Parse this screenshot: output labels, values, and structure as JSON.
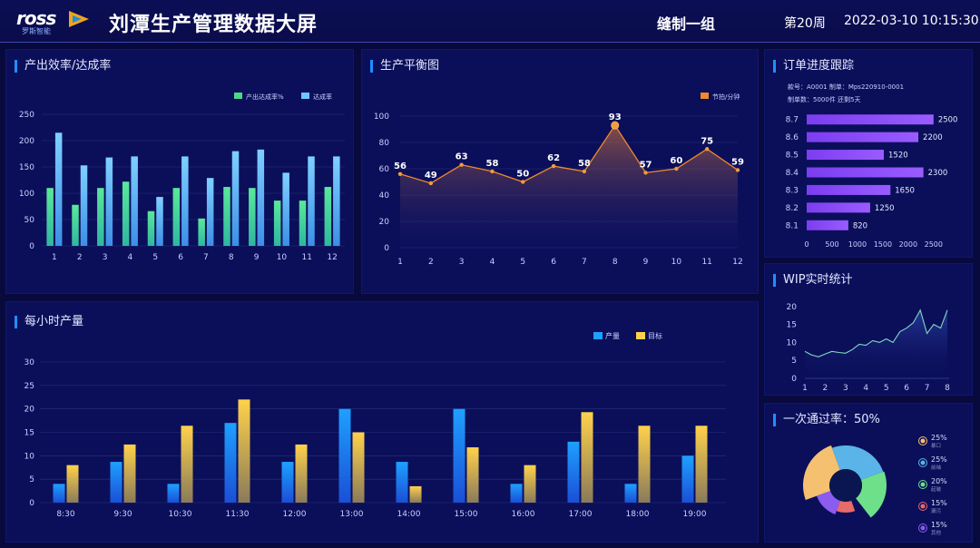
{
  "header": {
    "logo_text": "ross",
    "logo_subtext": "罗斯智能",
    "title": "刘潭生产管理数据大屏",
    "group": "缝制一组",
    "week": "第20周",
    "datetime": "2022-03-10 10:15:30"
  },
  "colors": {
    "bg": "#080a3e",
    "panel": "#0b0f5a",
    "accent": "#1f8fff",
    "green": "#4ed68a",
    "lightblue": "#6ec6ff",
    "orange": "#f08a2a",
    "yellow": "#ffd24a",
    "purple": "#7b4cf0",
    "teal": "#5fd0b0"
  },
  "panels": {
    "efficiency": {
      "title": "产出效率/达成率"
    },
    "balance": {
      "title": "生产平衡图"
    },
    "orders": {
      "title": "订单进度跟踪",
      "info1": "款号：A0001  制单：Mps220910-0001",
      "info2": "制单数：5000件  还剩5天"
    },
    "wip": {
      "title": "WIP实时统计"
    },
    "hourly": {
      "title": "每小时产量"
    },
    "passrate": {
      "title": "一次通过率：50%"
    }
  },
  "chart_data": [
    {
      "id": "efficiency",
      "type": "bar",
      "categories": [
        "1",
        "2",
        "3",
        "4",
        "5",
        "6",
        "7",
        "8",
        "9",
        "10",
        "11",
        "12"
      ],
      "series": [
        {
          "name": "产出达成率%",
          "values": [
            110,
            78,
            110,
            122,
            66,
            110,
            52,
            112,
            110,
            86,
            86,
            112
          ]
        },
        {
          "name": "达成率",
          "values": [
            215,
            153,
            168,
            170,
            93,
            170,
            129,
            180,
            183,
            139,
            170,
            170
          ]
        }
      ],
      "yticks": [
        0,
        50,
        100,
        150,
        200,
        250
      ],
      "ylim": [
        0,
        250
      ]
    },
    {
      "id": "balance",
      "type": "area",
      "x": [
        "1",
        "2",
        "3",
        "4",
        "5",
        "6",
        "7",
        "8",
        "9",
        "10",
        "11",
        "12"
      ],
      "series": [
        {
          "name": "节拍/分钟",
          "values": [
            56,
            49,
            63,
            58,
            50,
            62,
            58,
            93,
            57,
            60,
            75,
            59
          ]
        }
      ],
      "yticks": [
        0,
        20,
        40,
        60,
        80,
        100
      ],
      "ylim": [
        0,
        100
      ]
    },
    {
      "id": "orders",
      "type": "bar",
      "orientation": "horizontal",
      "categories": [
        "8.7",
        "8.6",
        "8.5",
        "8.4",
        "8.3",
        "8.2",
        "8.1"
      ],
      "values": [
        2500,
        2200,
        1520,
        2300,
        1650,
        1250,
        820
      ],
      "xticks": [
        0,
        500,
        1000,
        1500,
        2000,
        2500
      ],
      "xlim": [
        0,
        2700
      ]
    },
    {
      "id": "wip",
      "type": "area",
      "x": [
        1,
        1.33,
        1.67,
        2,
        2.33,
        2.67,
        3,
        3.33,
        3.67,
        4,
        4.33,
        4.67,
        5,
        5.33,
        5.67,
        6,
        6.33,
        6.67,
        7,
        7.33,
        7.67,
        8
      ],
      "values": [
        7.5,
        6.5,
        6,
        6.8,
        7.5,
        7.2,
        7,
        8,
        9.5,
        9.2,
        10.5,
        10,
        11,
        10,
        13,
        14,
        15.5,
        19,
        12.5,
        15,
        14,
        19
      ],
      "xticks": [
        1,
        2,
        3,
        4,
        5,
        6,
        7,
        8
      ],
      "yticks": [
        0,
        5,
        10,
        15,
        20
      ],
      "ylim": [
        0,
        24
      ]
    },
    {
      "id": "hourly",
      "type": "bar",
      "categories": [
        "8:30",
        "9:30",
        "10:30",
        "11:30",
        "12:00",
        "13:00",
        "14:00",
        "15:00",
        "16:00",
        "17:00",
        "18:00",
        "19:00"
      ],
      "series": [
        {
          "name": "产量",
          "values": [
            4,
            8.7,
            4,
            17,
            8.7,
            20,
            8.7,
            20,
            4,
            13,
            4,
            10
          ]
        },
        {
          "name": "目标",
          "values": [
            8,
            12.4,
            16.4,
            22,
            12.4,
            15,
            3.5,
            11.8,
            8,
            19.3,
            16.4,
            16.4
          ]
        }
      ],
      "yticks": [
        0,
        5,
        10,
        15,
        20,
        25,
        30
      ],
      "ylim": [
        0,
        30
      ]
    },
    {
      "id": "passrate",
      "type": "pie",
      "slices": [
        {
          "label": "25%",
          "name": "暴口",
          "value": 25,
          "color": "#f5c070"
        },
        {
          "label": "25%",
          "name": "前袖",
          "value": 25,
          "color": "#5ab4e8"
        },
        {
          "label": "20%",
          "name": "起皱",
          "value": 20,
          "color": "#6ee08a"
        },
        {
          "label": "15%",
          "name": "漏污",
          "value": 15,
          "color": "#e86a6a"
        },
        {
          "label": "15%",
          "name": "其他",
          "value": 15,
          "color": "#8a5cf0"
        }
      ]
    }
  ]
}
